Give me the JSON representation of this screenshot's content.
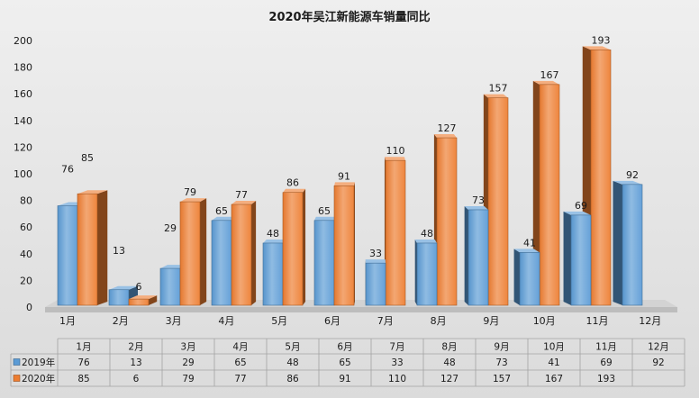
{
  "chart_data": {
    "type": "bar",
    "3d": true,
    "title": "2020年吴江新能源车销量同比",
    "categories": [
      "1月",
      "2月",
      "3月",
      "4月",
      "5月",
      "6月",
      "7月",
      "8月",
      "9月",
      "10月",
      "11月",
      "12月"
    ],
    "series": [
      {
        "name": "2019年",
        "color": "#5b9bd5",
        "values": [
          76,
          13,
          29,
          65,
          48,
          65,
          33,
          48,
          73,
          41,
          69,
          92
        ]
      },
      {
        "name": "2020年",
        "color": "#ed7d31",
        "values": [
          85,
          6,
          79,
          77,
          86,
          91,
          110,
          127,
          157,
          167,
          193,
          null
        ]
      }
    ],
    "ylim": [
      0,
      200
    ],
    "yticks": [
      0,
      20,
      40,
      60,
      80,
      100,
      120,
      140,
      160,
      180,
      200
    ],
    "grid": false,
    "legend": "bottom-left",
    "data_table": true
  }
}
